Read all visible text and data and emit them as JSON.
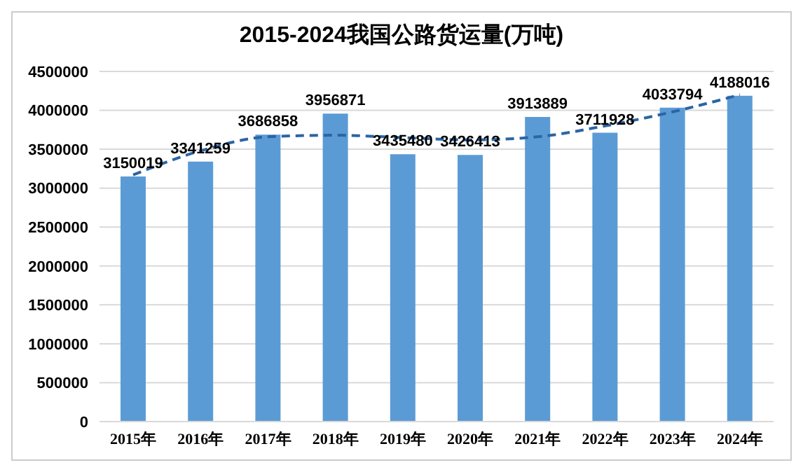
{
  "chart_data": {
    "type": "bar",
    "title": "2015-2024我国公路货运量(万吨)",
    "categories": [
      "2015年",
      "2016年",
      "2017年",
      "2018年",
      "2019年",
      "2020年",
      "2021年",
      "2022年",
      "2023年",
      "2024年"
    ],
    "series": [
      {
        "color": "#5b9bd5",
        "values": [
          3150019,
          3341259,
          3686858,
          3956871,
          3435480,
          3426413,
          3913889,
          3711928,
          4033794,
          4188016
        ],
        "data_labels": true
      },
      {
        "type": "line",
        "color": "#2c64a4",
        "line_style": "dashed",
        "marker": "none",
        "values": [
          3170000,
          3480000,
          3660000,
          3680000,
          3650000,
          3620000,
          3660000,
          3800000,
          3980000,
          4200000
        ]
      }
    ],
    "ylim": [
      0,
      4500000
    ],
    "yticks": [
      0,
      500000,
      1000000,
      1500000,
      2000000,
      2500000,
      3000000,
      3500000,
      4000000,
      4500000
    ],
    "grid": "y",
    "legend": false
  }
}
